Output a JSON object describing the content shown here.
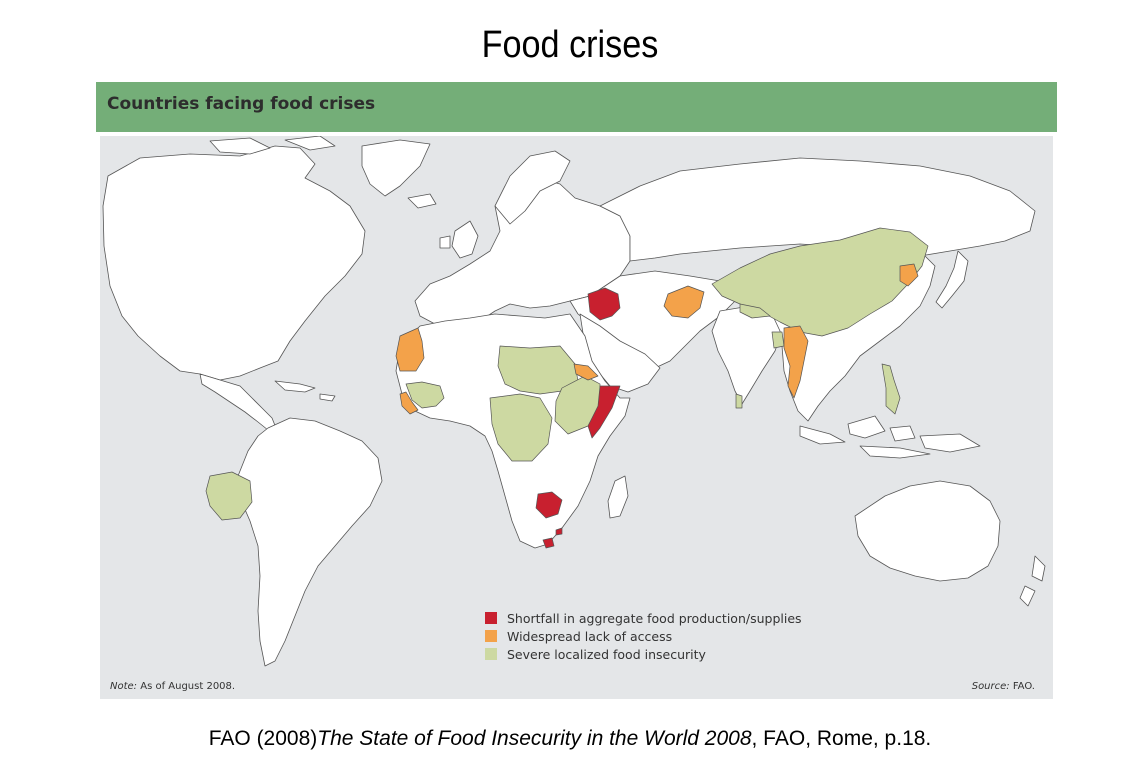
{
  "slide_title": "Food crises",
  "figure": {
    "header_title": "Countries facing food crises",
    "note_label": "Note:",
    "note_text": "As of August 2008.",
    "source_label": "Source:",
    "source_text": "FAO."
  },
  "legend": [
    {
      "label": "Shortfall in aggregate food production/supplies",
      "color": "#c8202f"
    },
    {
      "label": "Widespread lack of access",
      "color": "#f3a24a"
    },
    {
      "label": "Severe localized food insecurity",
      "color": "#cdd9a2"
    }
  ],
  "colors": {
    "ocean": "#e4e6e8",
    "land": "#ffffff",
    "border": "#555555",
    "header_band": "#74ae78",
    "shortfall": "#c8202f",
    "lack_of_access": "#f3a24a",
    "localized": "#cdd9a2"
  },
  "map_categories": {
    "shortfall": [
      "Iraq",
      "Somalia",
      "Zimbabwe",
      "Lesotho",
      "Swaziland"
    ],
    "lack_of_access": [
      "Mauritania",
      "Afghanistan",
      "North Korea",
      "Myanmar",
      "Eritrea",
      "Sierra Leone",
      "Liberia"
    ],
    "localized": [
      "Bolivia",
      "China",
      "Sudan",
      "Chad",
      "Central African Republic",
      "DR Congo",
      "Ethiopia",
      "Kenya",
      "Uganda",
      "Guinea",
      "Côte d'Ivoire",
      "Nepal",
      "Bangladesh",
      "Sri Lanka",
      "Philippines",
      "Burundi",
      "Congo"
    ]
  },
  "citation": {
    "prefix": "FAO (2008)",
    "title": "The State of Food Insecurity in the World 2008",
    "suffix": ", FAO, Rome, p.18."
  }
}
